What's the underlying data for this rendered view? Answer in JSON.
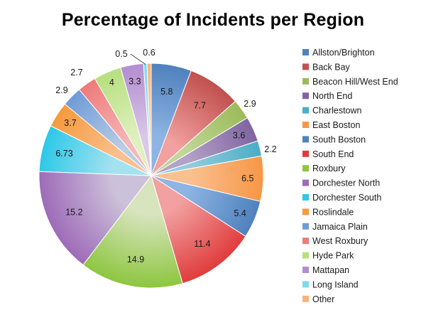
{
  "chart_data": {
    "type": "pie",
    "title": "Percentage of Incidents per Region",
    "categories": [
      "Allston/Brighton",
      "Back Bay",
      "Beacon Hill/West End",
      "North End",
      "Charlestown",
      "East Boston",
      "South Boston",
      "South End",
      "Roxbury",
      "Dorchester North",
      "Dorchester South",
      "Roslindale",
      "Jamaica Plain",
      "West Roxbury",
      "Hyde Park",
      "Mattapan",
      "Long Island",
      "Other"
    ],
    "values": [
      5.8,
      7.7,
      2.9,
      3.6,
      2.2,
      6.5,
      5.4,
      11.4,
      14.9,
      15.2,
      6.73,
      3.7,
      2.9,
      2.7,
      4,
      3.3,
      0.5,
      0.6
    ],
    "labels": [
      "5.8",
      "7.7",
      "2.9",
      "3.6",
      "2.2",
      "6.5",
      "5.4",
      "11.4",
      "14.9",
      "15.2",
      "6.73",
      "3.7",
      "2.9",
      "2.7",
      "4",
      "3.3",
      "0.5",
      "0.6"
    ],
    "colors": [
      "#8EB4E3",
      "#F2A0A0",
      "#C3D69B",
      "#B3A2C7",
      "#93CDDD",
      "#FAC090",
      "#8EB4E3",
      "#F2A0A0",
      "#D7E4BD",
      "#CCC1DA",
      "#A5E2F0",
      "#FAC090",
      "#B9CDE5",
      "#F5B8B8",
      "#E0F0C0",
      "#D9C8E8",
      "#B8E8F2",
      "#FCD5B5"
    ],
    "dark_colors": [
      "#4F81BD",
      "#C0504D",
      "#9BBB59",
      "#8064A2",
      "#4BACC6",
      "#F79646",
      "#4F81BD",
      "#E03C3C",
      "#8DC63F",
      "#9E6BB8",
      "#2CC8E8",
      "#F59A3C",
      "#6F9BD8",
      "#EE7A7A",
      "#B7DF7E",
      "#B48CD0",
      "#7FD8EC",
      "#F8B27A"
    ],
    "legend_position": "right"
  }
}
